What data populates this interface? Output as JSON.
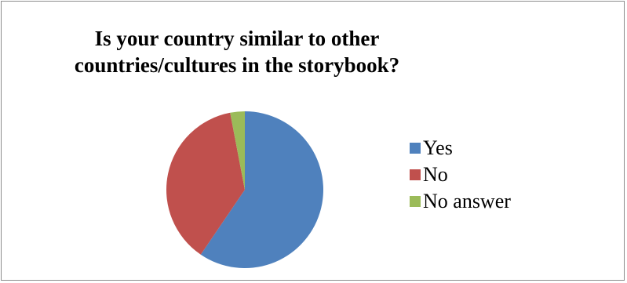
{
  "chart_data": {
    "type": "pie",
    "title_lines": [
      "Is your country similar to other",
      "countries/cultures in the storybook?"
    ],
    "categories": [
      "Yes",
      "No",
      "No answer"
    ],
    "values": [
      59.5,
      37.5,
      3.0
    ],
    "colors": [
      "#4f81bd",
      "#c0504d",
      "#9bbb59"
    ],
    "legend_position": "right",
    "start_angle_deg": 0,
    "direction": "clockwise"
  }
}
